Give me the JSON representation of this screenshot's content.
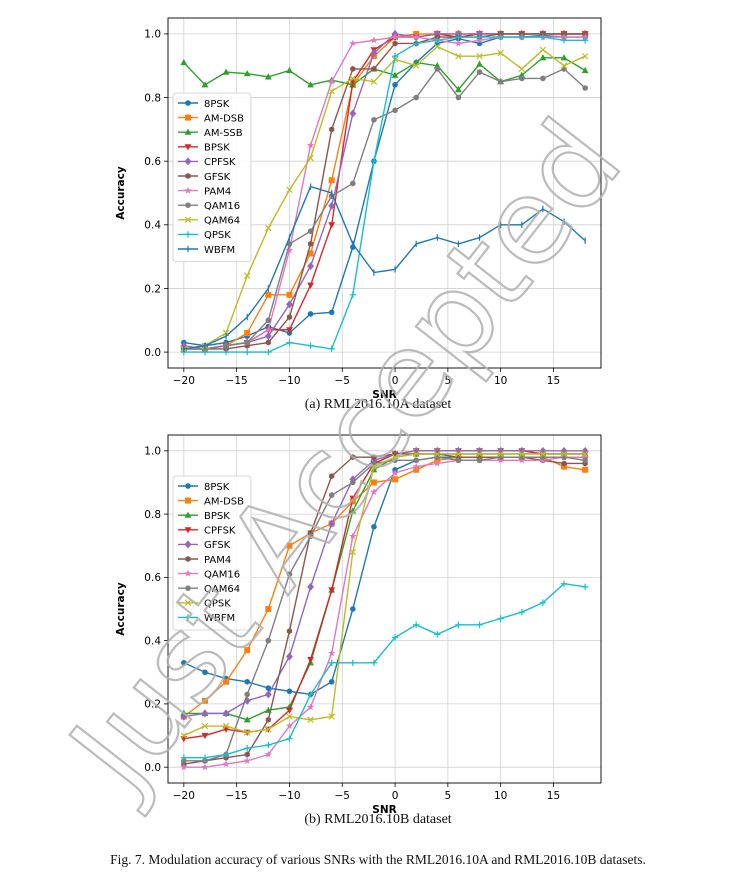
{
  "figure_caption": "Fig. 7.  Modulation accuracy of various SNRs with the RML2016.10A and RML2016.10B datasets.",
  "watermark": "Just Accepted",
  "chart_data": [
    {
      "type": "line",
      "caption": "(a) RML2016.10A dataset",
      "xlabel": "SNR",
      "ylabel": "Accuracy",
      "xlim": [
        -21.5,
        19.5
      ],
      "ylim": [
        -0.05,
        1.05
      ],
      "xticks": [
        -20,
        -15,
        -10,
        -5,
        0,
        5,
        10,
        15
      ],
      "yticks": [
        0.0,
        0.2,
        0.4,
        0.6,
        0.8,
        1.0
      ],
      "grid": true,
      "legend_position": "center-left",
      "x": [
        -20,
        -18,
        -16,
        -14,
        -12,
        -10,
        -8,
        -6,
        -4,
        -2,
        0,
        2,
        4,
        6,
        8,
        10,
        12,
        14,
        16,
        18
      ],
      "series": [
        {
          "name": "8PSK",
          "color": "#1f77b4",
          "marker": "circle",
          "values": [
            0.03,
            0.02,
            0.03,
            0.05,
            0.08,
            0.06,
            0.12,
            0.125,
            0.33,
            0.6,
            0.84,
            0.91,
            0.97,
            0.985,
            0.97,
            0.99,
            0.99,
            0.995,
            0.99,
            0.99
          ]
        },
        {
          "name": "AM-DSB",
          "color": "#ff7f0e",
          "marker": "square",
          "values": [
            0.01,
            0.01,
            0.02,
            0.06,
            0.18,
            0.18,
            0.31,
            0.54,
            0.84,
            0.93,
            0.99,
            1.0,
            1.0,
            1.0,
            1.0,
            1.0,
            1.0,
            1.0,
            1.0,
            1.0
          ]
        },
        {
          "name": "AM-SSB",
          "color": "#2ca02c",
          "marker": "triangle-up",
          "values": [
            0.91,
            0.84,
            0.88,
            0.875,
            0.865,
            0.885,
            0.84,
            0.855,
            0.84,
            0.89,
            0.87,
            0.91,
            0.9,
            0.825,
            0.905,
            0.85,
            0.87,
            0.925,
            0.925,
            0.885
          ]
        },
        {
          "name": "BPSK",
          "color": "#d62728",
          "marker": "triangle-down",
          "values": [
            0.01,
            0.01,
            0.02,
            0.03,
            0.07,
            0.07,
            0.21,
            0.4,
            0.85,
            0.95,
            0.99,
            0.99,
            1.0,
            0.99,
            1.0,
            1.0,
            1.0,
            1.0,
            1.0,
            1.0
          ]
        },
        {
          "name": "CPFSK",
          "color": "#9467bd",
          "marker": "diamond",
          "values": [
            0.02,
            0.01,
            0.02,
            0.03,
            0.05,
            0.15,
            0.27,
            0.46,
            0.75,
            0.94,
            1.0,
            0.99,
            1.0,
            1.0,
            1.0,
            1.0,
            1.0,
            1.0,
            1.0,
            1.0
          ]
        },
        {
          "name": "GFSK",
          "color": "#8c564b",
          "marker": "hexagon",
          "values": [
            0.01,
            0.01,
            0.01,
            0.02,
            0.03,
            0.11,
            0.34,
            0.7,
            0.89,
            0.89,
            0.97,
            0.97,
            0.99,
            0.99,
            0.99,
            1.0,
            1.0,
            1.0,
            1.0,
            1.0
          ]
        },
        {
          "name": "PAM4",
          "color": "#e377c2",
          "marker": "star",
          "values": [
            0.01,
            0.01,
            0.02,
            0.03,
            0.07,
            0.32,
            0.65,
            0.85,
            0.97,
            0.98,
            0.99,
            0.99,
            0.98,
            0.97,
            0.98,
            0.99,
            0.99,
            0.99,
            0.99,
            0.99
          ]
        },
        {
          "name": "QAM16",
          "color": "#7f7f7f",
          "marker": "circle",
          "values": [
            0.01,
            0.01,
            0.02,
            0.03,
            0.1,
            0.34,
            0.38,
            0.49,
            0.53,
            0.73,
            0.76,
            0.8,
            0.89,
            0.8,
            0.88,
            0.85,
            0.86,
            0.86,
            0.89,
            0.83
          ]
        },
        {
          "name": "QAM64",
          "color": "#bcbd22",
          "marker": "x",
          "values": [
            0.01,
            0.02,
            0.06,
            0.24,
            0.39,
            0.51,
            0.61,
            0.82,
            0.86,
            0.85,
            0.92,
            0.9,
            0.96,
            0.93,
            0.93,
            0.94,
            0.89,
            0.95,
            0.9,
            0.93
          ]
        },
        {
          "name": "QPSK",
          "color": "#17becf",
          "marker": "plus",
          "values": [
            0.0,
            0.0,
            0.0,
            0.0,
            0.0,
            0.03,
            0.02,
            0.01,
            0.18,
            0.6,
            0.93,
            0.97,
            0.98,
            0.99,
            0.99,
            0.99,
            0.99,
            0.99,
            0.98,
            0.98
          ]
        },
        {
          "name": "WBFM",
          "color": "#1f77b4",
          "marker": "tick",
          "values": [
            0.01,
            0.02,
            0.05,
            0.11,
            0.2,
            0.36,
            0.52,
            0.5,
            0.34,
            0.25,
            0.26,
            0.34,
            0.36,
            0.34,
            0.36,
            0.4,
            0.4,
            0.45,
            0.41,
            0.35
          ]
        }
      ]
    },
    {
      "type": "line",
      "caption": "(b) RML2016.10B dataset",
      "xlabel": "SNR",
      "ylabel": "Accuracy",
      "xlim": [
        -21.5,
        19.5
      ],
      "ylim": [
        -0.05,
        1.05
      ],
      "xticks": [
        -20,
        -15,
        -10,
        -5,
        0,
        5,
        10,
        15
      ],
      "yticks": [
        0.0,
        0.2,
        0.4,
        0.6,
        0.8,
        1.0
      ],
      "grid": true,
      "legend_position": "center-left",
      "x": [
        -20,
        -18,
        -16,
        -14,
        -12,
        -10,
        -8,
        -6,
        -4,
        -2,
        0,
        2,
        4,
        6,
        8,
        10,
        12,
        14,
        16,
        18
      ],
      "series": [
        {
          "name": "8PSK",
          "color": "#1f77b4",
          "marker": "circle",
          "values": [
            0.33,
            0.3,
            0.28,
            0.27,
            0.25,
            0.24,
            0.23,
            0.27,
            0.5,
            0.76,
            0.94,
            0.97,
            0.98,
            0.98,
            0.98,
            0.98,
            0.98,
            0.98,
            0.98,
            0.98
          ]
        },
        {
          "name": "AM-DSB",
          "color": "#ff7f0e",
          "marker": "square",
          "values": [
            0.16,
            0.21,
            0.27,
            0.37,
            0.5,
            0.7,
            0.74,
            0.77,
            0.84,
            0.9,
            0.91,
            0.94,
            0.97,
            0.98,
            0.98,
            0.98,
            0.98,
            0.98,
            0.95,
            0.94
          ]
        },
        {
          "name": "BPSK",
          "color": "#2ca02c",
          "marker": "triangle-up",
          "values": [
            0.17,
            0.17,
            0.17,
            0.15,
            0.18,
            0.19,
            0.33,
            0.56,
            0.81,
            0.94,
            0.98,
            0.99,
            0.99,
            0.99,
            0.99,
            0.99,
            0.99,
            0.99,
            0.99,
            0.99
          ]
        },
        {
          "name": "CPFSK",
          "color": "#d62728",
          "marker": "triangle-down",
          "values": [
            0.09,
            0.1,
            0.12,
            0.11,
            0.12,
            0.18,
            0.34,
            0.56,
            0.85,
            0.96,
            0.99,
            1.0,
            1.0,
            1.0,
            1.0,
            1.0,
            1.0,
            0.99,
            0.99,
            0.99
          ]
        },
        {
          "name": "GFSK",
          "color": "#9467bd",
          "marker": "diamond",
          "values": [
            0.16,
            0.17,
            0.17,
            0.21,
            0.23,
            0.35,
            0.57,
            0.77,
            0.91,
            0.97,
            0.99,
            1.0,
            1.0,
            1.0,
            1.0,
            1.0,
            1.0,
            1.0,
            1.0,
            1.0
          ]
        },
        {
          "name": "PAM4",
          "color": "#8c564b",
          "marker": "hexagon",
          "values": [
            0.01,
            0.02,
            0.03,
            0.04,
            0.15,
            0.43,
            0.74,
            0.92,
            0.98,
            0.98,
            0.99,
            0.99,
            0.99,
            0.98,
            0.98,
            0.98,
            0.98,
            0.97,
            0.96,
            0.96
          ]
        },
        {
          "name": "QAM16",
          "color": "#e377c2",
          "marker": "star",
          "values": [
            0.0,
            0.0,
            0.01,
            0.02,
            0.04,
            0.13,
            0.19,
            0.36,
            0.73,
            0.87,
            0.93,
            0.95,
            0.96,
            0.97,
            0.97,
            0.97,
            0.97,
            0.97,
            0.98,
            0.98
          ]
        },
        {
          "name": "QAM64",
          "color": "#7f7f7f",
          "marker": "circle",
          "values": [
            0.02,
            0.02,
            0.04,
            0.23,
            0.4,
            0.61,
            0.73,
            0.86,
            0.9,
            0.96,
            0.97,
            0.97,
            0.98,
            0.97,
            0.97,
            0.98,
            0.98,
            0.98,
            0.98,
            0.97
          ]
        },
        {
          "name": "QPSK",
          "color": "#bcbd22",
          "marker": "x",
          "values": [
            0.1,
            0.13,
            0.13,
            0.11,
            0.12,
            0.16,
            0.15,
            0.16,
            0.68,
            0.95,
            0.98,
            0.99,
            0.99,
            0.99,
            0.99,
            0.99,
            0.99,
            0.99,
            0.99,
            0.99
          ]
        },
        {
          "name": "WBFM",
          "color": "#17becf",
          "marker": "plus",
          "values": [
            0.03,
            0.03,
            0.04,
            0.06,
            0.07,
            0.09,
            0.23,
            0.33,
            0.33,
            0.33,
            0.41,
            0.45,
            0.42,
            0.45,
            0.45,
            0.47,
            0.49,
            0.52,
            0.58,
            0.57
          ]
        }
      ]
    }
  ]
}
